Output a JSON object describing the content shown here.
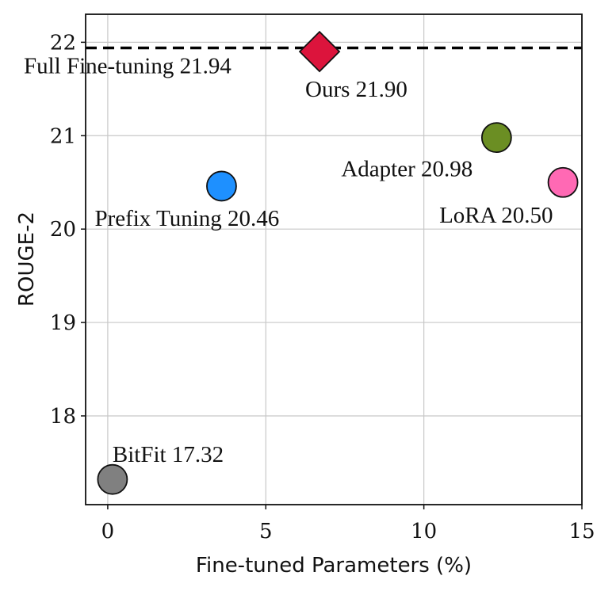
{
  "chart_data": {
    "type": "scatter",
    "title": "",
    "xlabel": "Fine-tuned Parameters (%)",
    "ylabel": "ROUGE-2",
    "xlim": [
      -0.7,
      15
    ],
    "ylim": [
      17.05,
      22.3
    ],
    "xticks": [
      0,
      5,
      10,
      15
    ],
    "yticks": [
      18,
      19,
      20,
      21,
      22
    ],
    "grid": true,
    "reference_line": {
      "label": "Full Fine-tuning 21.94",
      "y": 21.94,
      "style": "dashed",
      "color": "#000000"
    },
    "points": [
      {
        "name": "BitFit",
        "label": "BitFit 17.32",
        "x": 0.15,
        "y": 17.32,
        "marker": "circle",
        "color": "#808080"
      },
      {
        "name": "Prefix Tuning",
        "label": "Prefix Tuning 20.46",
        "x": 3.6,
        "y": 20.46,
        "marker": "circle",
        "color": "#1e90ff"
      },
      {
        "name": "Ours",
        "label": "Ours 21.90",
        "x": 6.7,
        "y": 21.9,
        "marker": "diamond",
        "color": "#dc143c"
      },
      {
        "name": "Adapter",
        "label": "Adapter 20.98",
        "x": 12.3,
        "y": 20.98,
        "marker": "circle",
        "color": "#6b8e23"
      },
      {
        "name": "LoRA",
        "label": "LoRA 20.50",
        "x": 14.4,
        "y": 20.5,
        "marker": "circle",
        "color": "#ff69b4"
      }
    ]
  }
}
